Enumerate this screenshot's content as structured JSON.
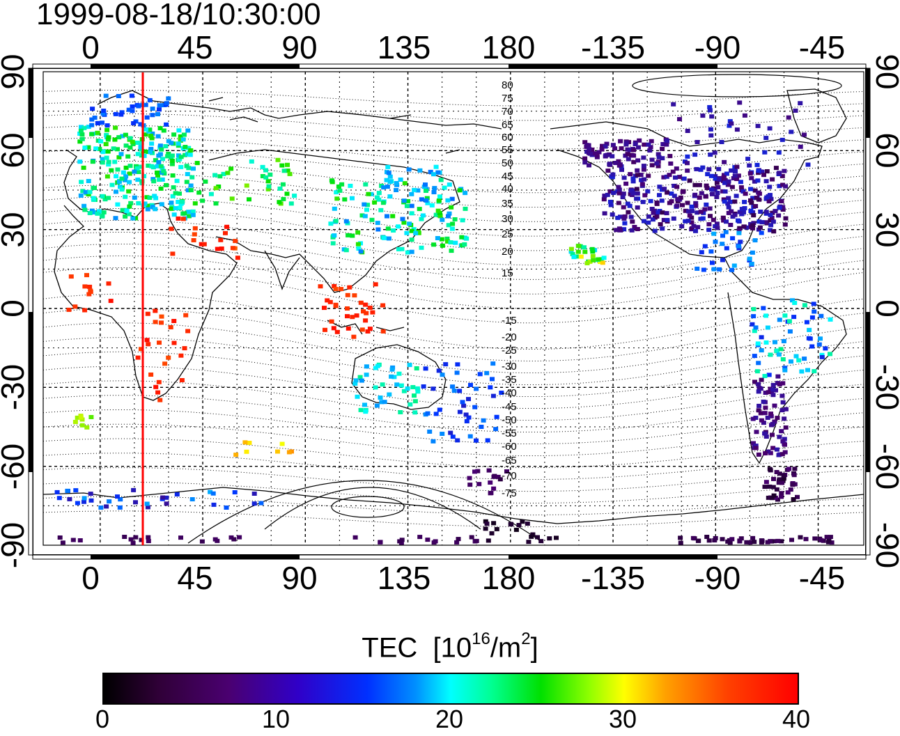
{
  "timestamp": "1999-08-18/10:30:00",
  "map": {
    "lon_ticks": [
      "0",
      "45",
      "90",
      "135",
      "180",
      "-135",
      "-90",
      "-45"
    ],
    "lat_ticks": [
      "90",
      "60",
      "30",
      "0",
      "-30",
      "-60",
      "-90"
    ],
    "contour_labels_north": [
      "80",
      "75",
      "70",
      "65",
      "60",
      "55",
      "50",
      "45",
      "40",
      "35",
      "30",
      "25",
      "20",
      "15"
    ],
    "contour_labels_south": [
      "-15",
      "-20",
      "-25",
      "-30",
      "-35",
      "-40",
      "-45",
      "-50",
      "-55",
      "-60",
      "-65",
      "-70",
      "-75"
    ],
    "meridian_line_color": "#ff0000"
  },
  "colorbar": {
    "title": "TEC",
    "unit_base": "[10",
    "unit_exp": "16",
    "unit_mid": "/m",
    "unit_exp2": "2",
    "unit_end": "]",
    "ticks": [
      "0",
      "10",
      "20",
      "30",
      "40"
    ],
    "min": 0,
    "max": 40,
    "colormap": [
      "#000000",
      "#4a0070",
      "#0030ff",
      "#00ffff",
      "#00e000",
      "#ffff00",
      "#ff4000",
      "#ff0000"
    ]
  }
}
